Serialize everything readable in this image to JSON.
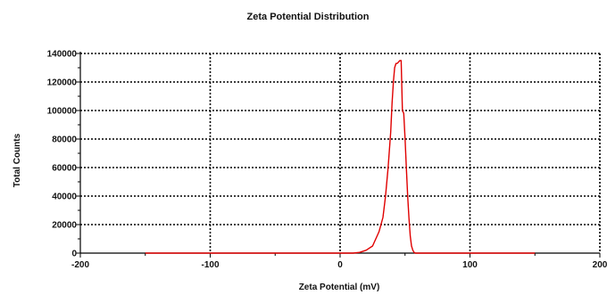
{
  "chart_data": {
    "type": "line",
    "title": "Zeta Potential Distribution",
    "xlabel": "Zeta Potential (mV)",
    "ylabel": "Total Counts",
    "xlim": [
      -200,
      200
    ],
    "ylim": [
      0,
      140000
    ],
    "x_ticks": [
      -200,
      -100,
      0,
      100,
      200
    ],
    "x_tick_labels": [
      "-200",
      "-100",
      "0",
      "100",
      "200"
    ],
    "y_ticks": [
      0,
      20000,
      40000,
      60000,
      80000,
      100000,
      120000,
      140000
    ],
    "y_tick_labels": [
      "0",
      "20000",
      "40000",
      "60000",
      "80000",
      "100000",
      "120000",
      "140000"
    ],
    "grid": true,
    "legend": "none",
    "series": [
      {
        "color": "#e00000",
        "x": [
          -150,
          -50,
          0,
          10,
          15,
          20,
          25,
          30,
          33,
          35,
          37,
          39,
          40,
          41,
          42,
          43,
          44,
          46,
          47,
          48,
          49,
          50,
          51,
          52,
          53,
          54,
          55,
          56,
          57,
          58,
          60,
          70,
          100,
          150
        ],
        "y": [
          0,
          0,
          0,
          0,
          500,
          2000,
          5000,
          15000,
          25000,
          40000,
          60000,
          85000,
          105000,
          120000,
          130000,
          133000,
          133000,
          135000,
          135000,
          100000,
          98000,
          80000,
          60000,
          40000,
          25000,
          12000,
          5000,
          2000,
          500,
          0,
          0,
          0,
          0,
          0
        ]
      }
    ]
  }
}
